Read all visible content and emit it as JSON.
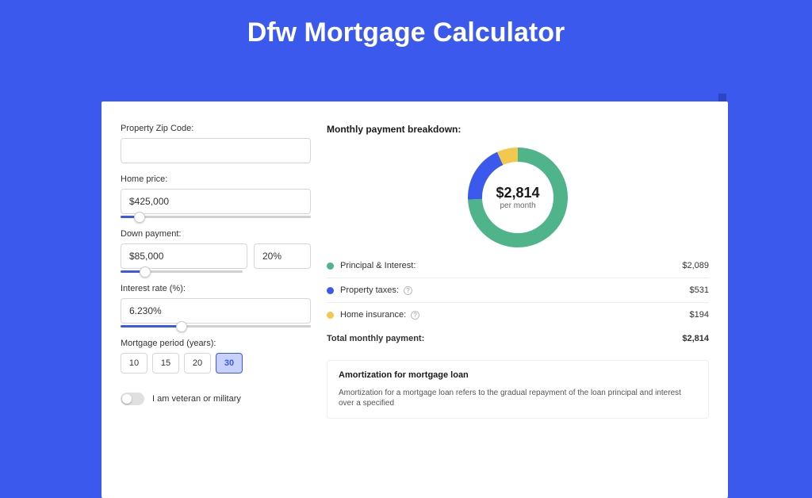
{
  "page": {
    "title": "Dfw Mortgage Calculator",
    "background_color": "#3b59ec",
    "card_background": "#ffffff",
    "shadow_color": "#2d46c6"
  },
  "form": {
    "zip": {
      "label": "Property Zip Code:",
      "value": ""
    },
    "home_price": {
      "label": "Home price:",
      "value": "$425,000",
      "slider_pos_pct": 10
    },
    "down_payment": {
      "label": "Down payment:",
      "value": "$85,000",
      "pct_value": "20%",
      "slider_pos_pct": 20
    },
    "interest_rate": {
      "label": "Interest rate (%):",
      "value": "6.230%",
      "slider_pos_pct": 32
    },
    "period": {
      "label": "Mortgage period (years):",
      "options": [
        "10",
        "15",
        "20",
        "30"
      ],
      "selected": "30"
    },
    "veteran": {
      "label": "I am veteran or military",
      "checked": false
    }
  },
  "breakdown": {
    "title": "Monthly payment breakdown:",
    "center_amount": "$2,814",
    "center_sub": "per month",
    "donut": {
      "segments": [
        {
          "name": "principal_interest",
          "value": 2089,
          "color": "#4fb48a"
        },
        {
          "name": "property_taxes",
          "value": 531,
          "color": "#3b59ec"
        },
        {
          "name": "home_insurance",
          "value": 194,
          "color": "#f2c94c"
        }
      ],
      "stroke_width": 18
    },
    "rows": [
      {
        "key": "principal_interest",
        "label": "Principal & Interest:",
        "value": "$2,089",
        "color": "#4fb48a",
        "help": false
      },
      {
        "key": "property_taxes",
        "label": "Property taxes:",
        "value": "$531",
        "color": "#3b59ec",
        "help": true
      },
      {
        "key": "home_insurance",
        "label": "Home insurance:",
        "value": "$194",
        "color": "#f2c94c",
        "help": true
      }
    ],
    "total": {
      "label": "Total monthly payment:",
      "value": "$2,814"
    }
  },
  "amortization": {
    "title": "Amortization for mortgage loan",
    "text": "Amortization for a mortgage loan refers to the gradual repayment of the loan principal and interest over a specified"
  }
}
